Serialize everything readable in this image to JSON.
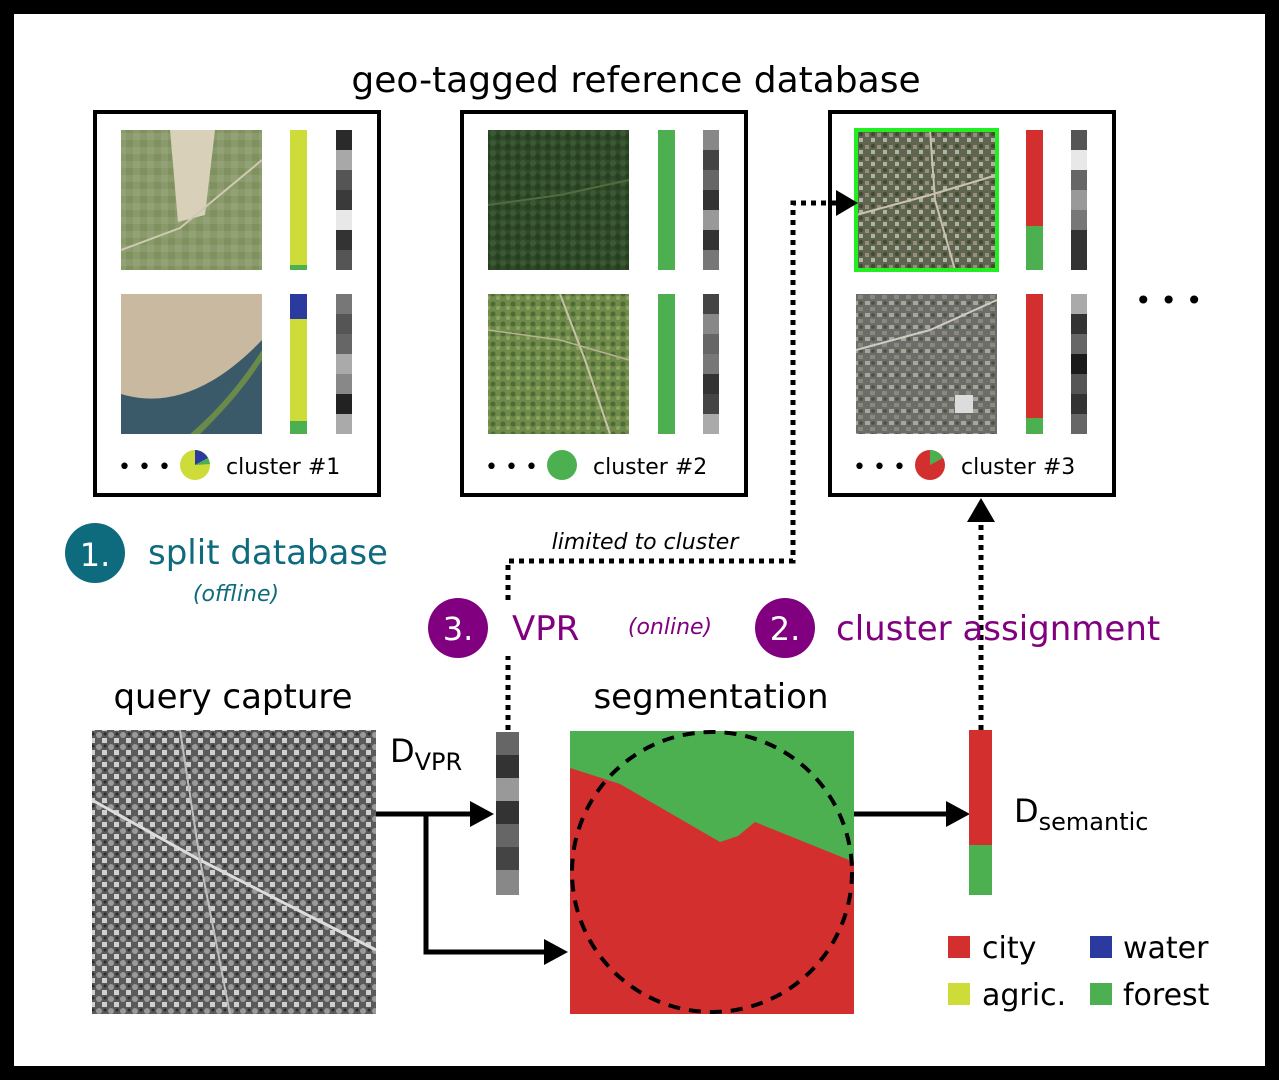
{
  "title": "geo-tagged reference database",
  "clusters": [
    {
      "label": "cluster #1"
    },
    {
      "label": "cluster #2"
    },
    {
      "label": "cluster #3"
    }
  ],
  "more_clusters": "• • •",
  "steps": {
    "split": {
      "number": "1.",
      "label": "split database",
      "note": "(offline)"
    },
    "vpr": {
      "number": "3.",
      "label": "VPR",
      "note": "(online)"
    },
    "assign": {
      "number": "2.",
      "label": "cluster assignment"
    }
  },
  "limited_label": "limited to cluster",
  "query_label": "query capture",
  "segmentation_label": "segmentation",
  "dvpr": {
    "main": "D",
    "sub": "VPR"
  },
  "dsem": {
    "main": "D",
    "sub": "semantic"
  },
  "legend": [
    {
      "label": "city",
      "color": "#d32f2f"
    },
    {
      "label": "water",
      "color": "#2a3a9e"
    },
    {
      "label": "agric.",
      "color": "#cddc39"
    },
    {
      "label": "forest",
      "color": "#4caf50"
    }
  ],
  "colors": {
    "teal": "#0e6b7e",
    "purple": "#800080",
    "city": "#d32f2f",
    "water": "#2a3a9e",
    "agric": "#cddc39",
    "forest": "#4caf50",
    "highlight": "#22ee22"
  }
}
